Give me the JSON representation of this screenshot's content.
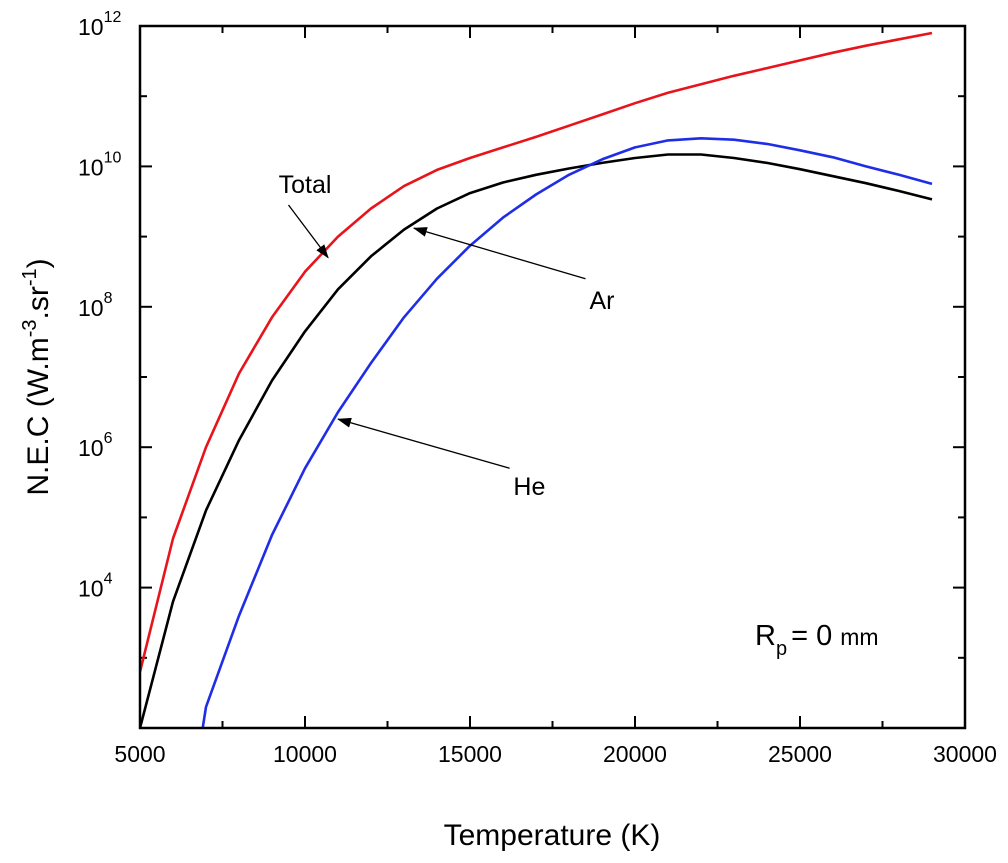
{
  "chart_data": {
    "type": "line",
    "title": "",
    "xlabel": "Temperature (K)",
    "ylabel": "N.E.C (W.m⁻³.sr⁻¹)",
    "ylabel_parts": {
      "main": "N.E.C (W.m",
      "exp1": "-3",
      "mid": ".sr",
      "exp2": "-1",
      "end": ")"
    },
    "xlim": [
      5000,
      30000
    ],
    "ylim_log10": [
      2,
      12
    ],
    "yscale": "log",
    "x_ticks": [
      5000,
      10000,
      15000,
      20000,
      25000,
      30000
    ],
    "x_tick_labels": [
      "5000",
      "10000",
      "15000",
      "20000",
      "25000",
      "30000"
    ],
    "y_ticks": [
      {
        "base": "10",
        "exp": "4",
        "log10": 4
      },
      {
        "base": "10",
        "exp": "6",
        "log10": 6
      },
      {
        "base": "10",
        "exp": "8",
        "log10": 8
      },
      {
        "base": "10",
        "exp": "10",
        "log10": 10
      },
      {
        "base": "10",
        "exp": "12",
        "log10": 12
      }
    ],
    "grid": false,
    "series": [
      {
        "name": "Total",
        "color": "#e8141b",
        "log10_values": true,
        "x": [
          5000,
          6000,
          7000,
          8000,
          9000,
          10000,
          11000,
          12000,
          13000,
          14000,
          15000,
          16000,
          17000,
          18000,
          19000,
          20000,
          21000,
          22000,
          23000,
          24000,
          25000,
          26000,
          27000,
          28000,
          29000
        ],
        "y": [
          2.8,
          4.7,
          6.0,
          7.05,
          7.85,
          8.5,
          9.0,
          9.4,
          9.72,
          9.95,
          10.12,
          10.27,
          10.42,
          10.58,
          10.74,
          10.9,
          11.05,
          11.17,
          11.29,
          11.4,
          11.51,
          11.62,
          11.72,
          11.81,
          11.9
        ]
      },
      {
        "name": "Ar",
        "color": "#000000",
        "log10_values": true,
        "x": [
          5000,
          6000,
          7000,
          8000,
          9000,
          10000,
          11000,
          12000,
          13000,
          14000,
          15000,
          16000,
          17000,
          18000,
          19000,
          20000,
          21000,
          22000,
          23000,
          24000,
          25000,
          26000,
          27000,
          28000,
          29000
        ],
        "y": [
          2.0,
          3.8,
          5.1,
          6.1,
          6.95,
          7.65,
          8.25,
          8.72,
          9.1,
          9.4,
          9.62,
          9.77,
          9.88,
          9.97,
          10.05,
          10.12,
          10.17,
          10.17,
          10.12,
          10.05,
          9.96,
          9.86,
          9.76,
          9.65,
          9.53
        ]
      },
      {
        "name": "He",
        "color": "#1f2ee6",
        "log10_values": true,
        "x": [
          6900,
          7000,
          8000,
          9000,
          10000,
          11000,
          12000,
          13000,
          14000,
          15000,
          16000,
          17000,
          18000,
          19000,
          20000,
          21000,
          22000,
          23000,
          24000,
          25000,
          26000,
          27000,
          28000,
          29000
        ],
        "y": [
          2.0,
          2.3,
          3.6,
          4.75,
          5.7,
          6.5,
          7.2,
          7.85,
          8.4,
          8.87,
          9.27,
          9.6,
          9.88,
          10.1,
          10.27,
          10.37,
          10.4,
          10.38,
          10.32,
          10.23,
          10.13,
          10.0,
          9.88,
          9.75
        ]
      }
    ],
    "annotations": [
      {
        "text": "Total",
        "label_x": 10000,
        "label_y_log10": 9.75,
        "arrow_from_x": 9500,
        "arrow_from_y_log10": 9.45,
        "arrow_to_x": 10700,
        "arrow_to_y_log10": 8.7
      },
      {
        "text": "Ar",
        "label_x": 19000,
        "label_y_log10": 8.1,
        "arrow_from_x": 18500,
        "arrow_from_y_log10": 8.4,
        "arrow_to_x": 13300,
        "arrow_to_y_log10": 9.12
      },
      {
        "text": "He",
        "label_x": 16800,
        "label_y_log10": 5.45,
        "arrow_from_x": 16200,
        "arrow_from_y_log10": 5.7,
        "arrow_to_x": 11000,
        "arrow_to_y_log10": 6.4
      }
    ],
    "text_annotation": {
      "main": "R",
      "sub": "p",
      "value": "= 0",
      "unit": "mm"
    }
  }
}
